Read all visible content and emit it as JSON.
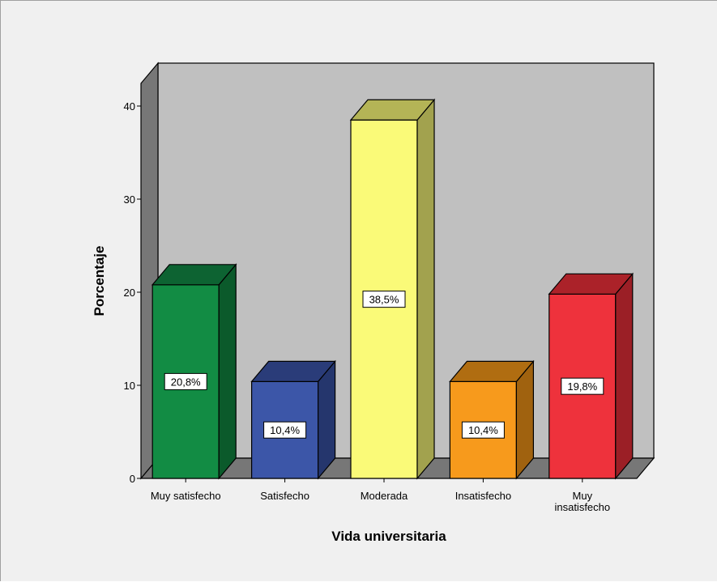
{
  "chart_data": {
    "type": "bar",
    "style": "3d",
    "title": "",
    "xlabel": "Vida universitaria",
    "ylabel": "Porcentaje",
    "ylim": [
      0,
      40
    ],
    "yticks": [
      "0",
      "10",
      "20",
      "30",
      "40"
    ],
    "grid": false,
    "legend": "none",
    "categories": [
      [
        "Muy satisfecho"
      ],
      [
        "Satisfecho"
      ],
      [
        "Moderada"
      ],
      [
        "Insatisfecho"
      ],
      [
        "Muy",
        "insatisfecho"
      ]
    ],
    "values": [
      20.8,
      10.4,
      38.5,
      10.4,
      19.8
    ],
    "value_labels": [
      "20,8%",
      "10,4%",
      "38,5%",
      "10,4%",
      "19,8%"
    ],
    "colors": {
      "bars": [
        "#128c44",
        "#3c56a8",
        "#fafa78",
        "#f79a1c",
        "#ee323c"
      ],
      "bar_sides": [
        "#0b5a2b",
        "#25366d",
        "#a2a24e",
        "#a0620f",
        "#9b1f26"
      ],
      "bar_tops": [
        "#0d6332",
        "#2a3c79",
        "#b4b456",
        "#b06d11",
        "#ab2229"
      ],
      "back_wall": "#c0c0c0",
      "side_wall": "#777777",
      "floor": "#777777",
      "background": "#f0f0f0"
    }
  }
}
